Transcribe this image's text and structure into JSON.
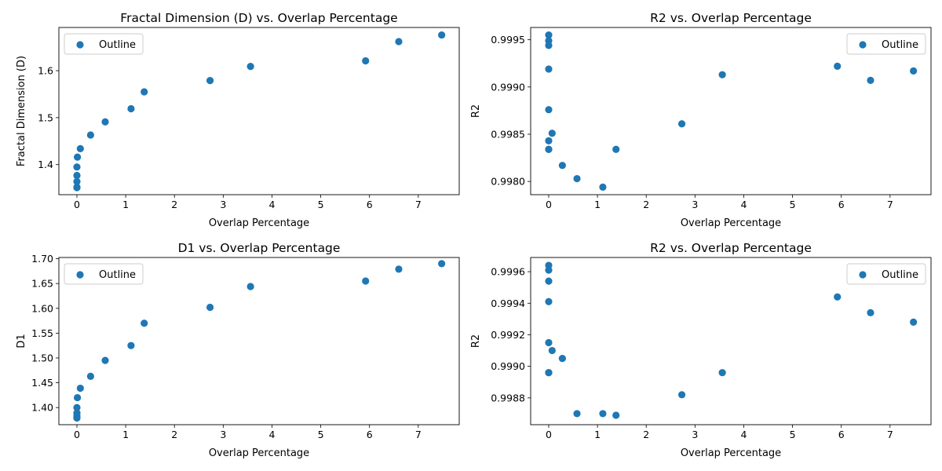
{
  "chart_data": [
    {
      "type": "scatter",
      "title": "Fractal Dimension (D) vs. Overlap Percentage",
      "xlabel": "Overlap Percentage",
      "ylabel": "Fractal Dimension (D)",
      "xlim": [
        -0.37,
        7.84
      ],
      "ylim": [
        1.336,
        1.692
      ],
      "xticks": [
        0,
        1,
        2,
        3,
        4,
        5,
        6,
        7
      ],
      "yticks": [
        1.4,
        1.5,
        1.6
      ],
      "ytick_labels": [
        "1.4",
        "1.5",
        "1.6"
      ],
      "legend_position": "upper-left",
      "color": "#1f77b4",
      "series": [
        {
          "name": "Outline",
          "x": [
            0,
            0,
            0,
            0,
            0,
            0.01,
            0.07,
            0.28,
            0.58,
            1.11,
            1.38,
            2.73,
            3.56,
            5.92,
            6.6,
            7.48
          ],
          "y": [
            1.351,
            1.352,
            1.364,
            1.377,
            1.395,
            1.416,
            1.434,
            1.463,
            1.491,
            1.519,
            1.555,
            1.579,
            1.609,
            1.621,
            1.662,
            1.676
          ]
        }
      ]
    },
    {
      "type": "scatter",
      "title": "R2 vs. Overlap Percentage",
      "xlabel": "Overlap Percentage",
      "ylabel": "R2",
      "xlim": [
        -0.37,
        7.84
      ],
      "ylim": [
        0.99786,
        0.99963
      ],
      "xticks": [
        0,
        1,
        2,
        3,
        4,
        5,
        6,
        7
      ],
      "yticks": [
        0.998,
        0.9985,
        0.999,
        0.9995
      ],
      "ytick_labels": [
        "0.9980",
        "0.9985",
        "0.9990",
        "0.9995"
      ],
      "legend_position": "upper-right",
      "color": "#1f77b4",
      "series": [
        {
          "name": "Outline",
          "x": [
            0,
            0,
            0,
            0,
            0,
            0,
            0,
            0,
            0.07,
            0.28,
            0.58,
            1.11,
            1.38,
            2.73,
            3.56,
            5.92,
            6.6,
            7.48
          ],
          "y": [
            0.99955,
            0.99949,
            0.99944,
            0.99919,
            0.99876,
            0.99843,
            0.99834,
            0.99834,
            0.99851,
            0.99817,
            0.99803,
            0.99794,
            0.99834,
            0.99861,
            0.99913,
            0.99922,
            0.99907,
            0.99917
          ]
        }
      ]
    },
    {
      "type": "scatter",
      "title": "D1 vs. Overlap Percentage",
      "xlabel": "Overlap Percentage",
      "ylabel": "D1",
      "xlim": [
        -0.37,
        7.84
      ],
      "ylim": [
        1.3655,
        1.7025
      ],
      "xticks": [
        0,
        1,
        2,
        3,
        4,
        5,
        6,
        7
      ],
      "yticks": [
        1.4,
        1.45,
        1.5,
        1.55,
        1.6,
        1.65,
        1.7
      ],
      "ytick_labels": [
        "1.40",
        "1.45",
        "1.50",
        "1.55",
        "1.60",
        "1.65",
        "1.70"
      ],
      "legend_position": "upper-left",
      "color": "#1f77b4",
      "series": [
        {
          "name": "Outline",
          "x": [
            0,
            0,
            0,
            0,
            0.01,
            0.07,
            0.28,
            0.58,
            1.11,
            1.38,
            2.73,
            3.56,
            5.92,
            6.6,
            7.48
          ],
          "y": [
            1.379,
            1.383,
            1.389,
            1.4,
            1.42,
            1.439,
            1.463,
            1.495,
            1.525,
            1.57,
            1.602,
            1.644,
            1.655,
            1.679,
            1.69
          ]
        }
      ]
    },
    {
      "type": "scatter",
      "title": "R2 vs. Overlap Percentage",
      "xlabel": "Overlap Percentage",
      "ylabel": "R2",
      "xlim": [
        -0.37,
        7.84
      ],
      "ylim": [
        0.99863,
        0.99969
      ],
      "xticks": [
        0,
        1,
        2,
        3,
        4,
        5,
        6,
        7
      ],
      "yticks": [
        0.9988,
        0.999,
        0.9992,
        0.9994,
        0.9996
      ],
      "ytick_labels": [
        "0.9988",
        "0.9990",
        "0.9992",
        "0.9994",
        "0.9996"
      ],
      "legend_position": "upper-right",
      "color": "#1f77b4",
      "series": [
        {
          "name": "Outline",
          "x": [
            0,
            0,
            0,
            0,
            0,
            0,
            0,
            0.07,
            0.28,
            0.58,
            1.11,
            1.38,
            2.73,
            3.56,
            5.92,
            6.6,
            7.48
          ],
          "y": [
            0.99964,
            0.99961,
            0.99954,
            0.99941,
            0.99915,
            0.99896,
            0.99896,
            0.9991,
            0.99905,
            0.9987,
            0.9987,
            0.99869,
            0.99882,
            0.99896,
            0.99944,
            0.99934,
            0.99928
          ]
        }
      ]
    }
  ]
}
